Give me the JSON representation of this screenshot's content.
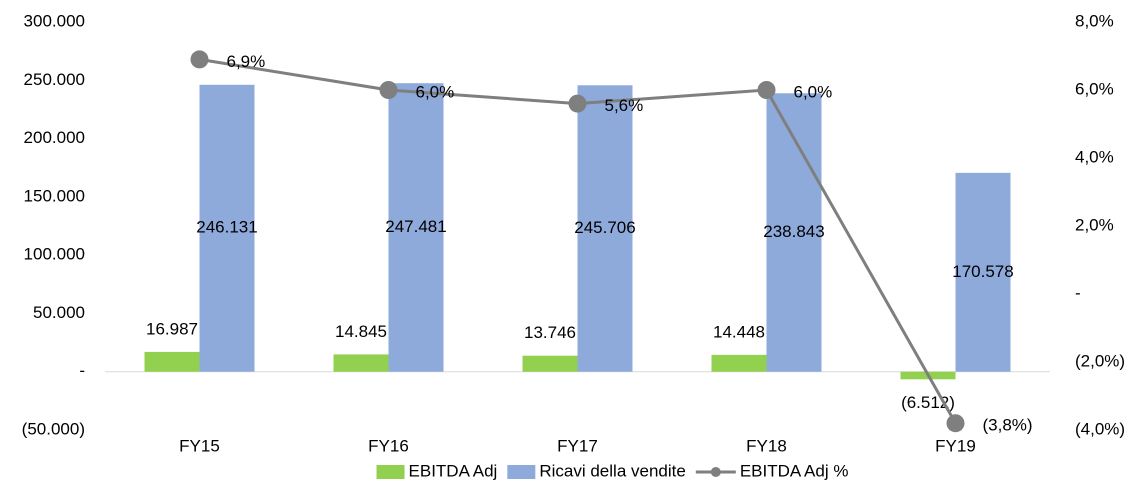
{
  "chart_data": {
    "type": "bar-line",
    "categories": [
      "FY15",
      "FY16",
      "FY17",
      "FY18",
      "FY19"
    ],
    "series": [
      {
        "name": "EBITDA Adj",
        "type": "bar",
        "color": "#92d050",
        "values": [
          16987,
          14845,
          13746,
          14448,
          -6512
        ],
        "value_labels": [
          "16.987",
          "14.845",
          "13.746",
          "14.448",
          "(6.512)"
        ]
      },
      {
        "name": "Ricavi della vendite",
        "type": "bar",
        "color": "#8eaadb",
        "values": [
          246131,
          247481,
          245706,
          238843,
          170578
        ],
        "value_labels": [
          "246.131",
          "247.481",
          "245.706",
          "238.843",
          "170.578"
        ]
      },
      {
        "name": "EBITDA Adj %",
        "type": "line",
        "axis": "y2",
        "color": "#7f7f7f",
        "values": [
          6.9,
          6.0,
          5.6,
          6.0,
          -3.8
        ],
        "value_labels": [
          "6,9%",
          "6,0%",
          "5,6%",
          "6,0%",
          "(3,8%)"
        ]
      }
    ],
    "ylim": [
      -50000,
      300000
    ],
    "yticks": [
      {
        "value": -50000,
        "label": "(50.000)"
      },
      {
        "value": 0,
        "label": "-"
      },
      {
        "value": 50000,
        "label": "50.000"
      },
      {
        "value": 100000,
        "label": "100.000"
      },
      {
        "value": 150000,
        "label": "150.000"
      },
      {
        "value": 200000,
        "label": "200.000"
      },
      {
        "value": 250000,
        "label": "250.000"
      },
      {
        "value": 300000,
        "label": "300.000"
      }
    ],
    "y2lim": [
      -4,
      8
    ],
    "y2ticks": [
      {
        "value": -4,
        "label": "(4,0%)"
      },
      {
        "value": -2,
        "label": "(2,0%)"
      },
      {
        "value": 0,
        "label": "-"
      },
      {
        "value": 2,
        "label": "2,0%"
      },
      {
        "value": 4,
        "label": "4,0%"
      },
      {
        "value": 6,
        "label": "6,0%"
      },
      {
        "value": 8,
        "label": "8,0%"
      }
    ],
    "legend": "bottom"
  }
}
